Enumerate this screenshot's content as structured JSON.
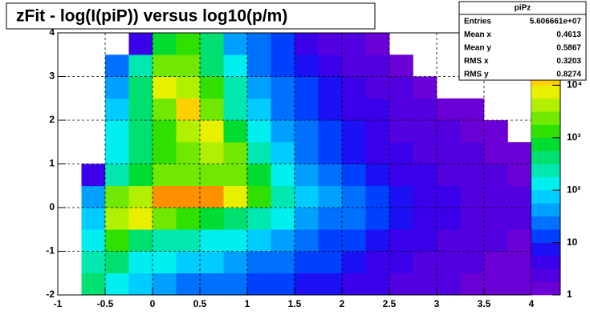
{
  "chart_data": {
    "type": "heatmap",
    "title": "zFit - log(I(piP)) versus log10(p/m)",
    "stats": {
      "name": "piPz",
      "rows": [
        [
          "Entries",
          "5.606661e+07"
        ],
        [
          "Mean x",
          "0.4613"
        ],
        [
          "Mean y",
          "0.5867"
        ],
        [
          "RMS x",
          "0.3203"
        ],
        [
          "RMS y",
          "0.8274"
        ]
      ]
    },
    "xbins": [
      -1,
      -0.75,
      -0.5,
      -0.25,
      0,
      0.25,
      0.5,
      0.75,
      1,
      1.25,
      1.5,
      1.75,
      2,
      2.25,
      2.5,
      2.75,
      3,
      3.25,
      3.5,
      3.75,
      4
    ],
    "ybins": [
      -2,
      -1.5,
      -1,
      -0.5,
      0,
      0.5,
      1,
      1.5,
      2,
      2.5,
      3,
      3.5,
      4
    ],
    "z": [
      [
        null,
        500,
        100,
        60,
        40,
        30,
        25,
        20,
        15,
        10,
        8,
        6,
        5,
        4,
        3,
        2,
        2,
        1,
        1,
        1
      ],
      [
        null,
        300,
        400,
        150,
        100,
        80,
        60,
        40,
        30,
        20,
        15,
        10,
        8,
        5,
        4,
        3,
        2,
        2,
        1,
        1
      ],
      [
        null,
        100,
        1500,
        500,
        300,
        200,
        150,
        100,
        60,
        40,
        25,
        15,
        10,
        8,
        5,
        4,
        3,
        2,
        2,
        1
      ],
      [
        null,
        80,
        5000,
        8000,
        3000,
        1500,
        800,
        400,
        200,
        100,
        50,
        30,
        20,
        12,
        8,
        5,
        4,
        3,
        2,
        2
      ],
      [
        null,
        50,
        3000,
        5000,
        20000,
        30000,
        20000,
        8000,
        1000,
        200,
        80,
        40,
        20,
        12,
        8,
        5,
        4,
        3,
        2,
        2
      ],
      [
        null,
        5,
        300,
        800,
        3000,
        3000,
        3000,
        2000,
        600,
        100,
        40,
        20,
        12,
        8,
        5,
        4,
        3,
        2,
        2,
        1
      ],
      [
        null,
        null,
        150,
        500,
        1500,
        3000,
        5000,
        3000,
        200,
        60,
        30,
        15,
        8,
        5,
        4,
        3,
        2,
        2,
        1,
        1
      ],
      [
        null,
        null,
        100,
        400,
        1500,
        5000,
        8000,
        800,
        100,
        40,
        20,
        10,
        6,
        4,
        3,
        2,
        2,
        1,
        1,
        null
      ],
      [
        null,
        null,
        80,
        500,
        2000,
        10000,
        2000,
        300,
        60,
        30,
        15,
        8,
        5,
        4,
        3,
        2,
        1,
        1,
        null,
        null
      ],
      [
        null,
        null,
        50,
        500,
        8000,
        5000,
        1000,
        200,
        50,
        20,
        10,
        6,
        4,
        3,
        2,
        1,
        null,
        null,
        null,
        null
      ],
      [
        null,
        null,
        20,
        300,
        3000,
        2000,
        500,
        100,
        30,
        15,
        8,
        5,
        3,
        2,
        1,
        null,
        null,
        null,
        null,
        null
      ],
      [
        null,
        null,
        null,
        5,
        800,
        1500,
        500,
        50,
        20,
        10,
        5,
        3,
        2,
        1,
        null,
        null,
        null,
        null,
        null,
        null
      ]
    ],
    "xlim": [
      -1,
      4
    ],
    "ylim": [
      -2,
      4
    ],
    "zlim": [
      1,
      100000
    ],
    "zlog": true,
    "xticks": [
      -1,
      -0.5,
      0,
      0.5,
      1,
      1.5,
      2,
      2.5,
      3,
      3.5,
      4
    ],
    "yticks": [
      -2,
      -1,
      0,
      1,
      2,
      3,
      4
    ],
    "zticks": [
      1,
      10,
      {
        "value": 100,
        "label": "10²"
      },
      {
        "value": 1000,
        "label": "10³"
      },
      {
        "value": 10000,
        "label": "10⁴"
      }
    ],
    "grid": true,
    "palette": [
      "#6a00d6",
      "#5200e0",
      "#3a00ea",
      "#1c10f5",
      "#0040ff",
      "#0070ff",
      "#00a0ff",
      "#00ccff",
      "#00eeee",
      "#00e8b0",
      "#00e070",
      "#00dd30",
      "#30e000",
      "#70e800",
      "#b0f000",
      "#e8f000",
      "#ffd000",
      "#ff9000",
      "#ff5000",
      "#ff0000"
    ]
  }
}
